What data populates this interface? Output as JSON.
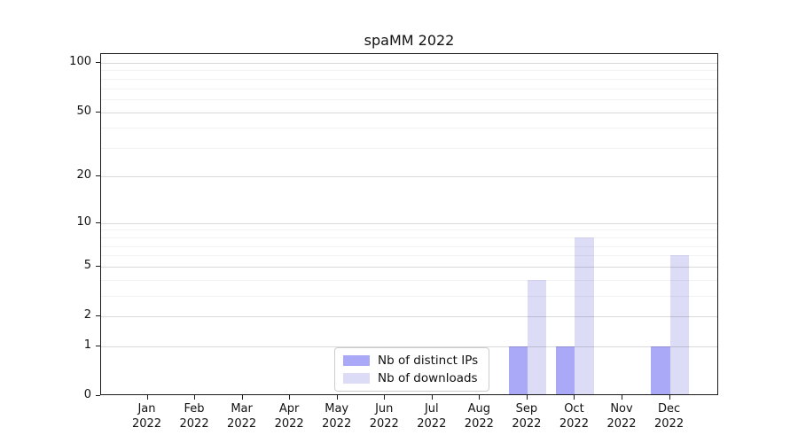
{
  "title": "spaMM 2022",
  "chart_data": {
    "type": "bar",
    "title": "spaMM 2022",
    "categories": [
      "Jan",
      "Feb",
      "Mar",
      "Apr",
      "May",
      "Jun",
      "Jul",
      "Aug",
      "Sep",
      "Oct",
      "Nov",
      "Dec"
    ],
    "category_year": "2022",
    "series": [
      {
        "name": "Nb of distinct IPs",
        "color": "#a9a9f7",
        "values": [
          0,
          0,
          0,
          0,
          0,
          0,
          0,
          0,
          1,
          1,
          0,
          1
        ]
      },
      {
        "name": "Nb of downloads",
        "color": "#dcdcf7",
        "values": [
          0,
          0,
          0,
          0,
          0,
          0,
          0,
          0,
          4,
          8,
          0,
          6
        ]
      }
    ],
    "yscale": "log1p",
    "yticks": [
      0,
      1,
      2,
      5,
      10,
      20,
      50,
      100
    ],
    "minor_yticks": [
      3,
      4,
      6,
      7,
      8,
      9,
      30,
      40,
      60,
      70,
      80,
      90
    ],
    "ylim": [
      0,
      113
    ],
    "xlabel": "",
    "ylabel": "",
    "grid": true,
    "legend_position": "lower center"
  },
  "colors": {
    "series_dark": "#a9a9f7",
    "series_light": "#dcdcf7",
    "grid_major": "#d9d9d9",
    "grid_minor": "#f2f2f2",
    "axis": "#1a1a1a",
    "background": "#ffffff"
  }
}
